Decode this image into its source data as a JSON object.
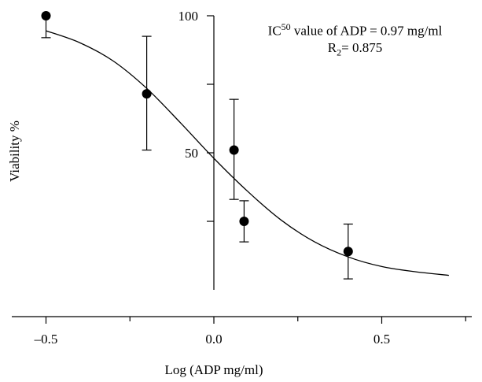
{
  "chart_data": {
    "type": "scatter",
    "xlabel": "Log (ADP mg/ml)",
    "ylabel": "Viability %",
    "xlim": [
      -0.6,
      0.78
    ],
    "ylim": [
      0,
      105
    ],
    "x_ticks": [
      -0.5,
      0.0,
      0.5
    ],
    "x_tick_labels": [
      "–0.5",
      "0.0",
      "0.5"
    ],
    "y_ticks": [
      50,
      100
    ],
    "y_tick_labels": [
      "50",
      "100"
    ],
    "grid": false,
    "legend": "none",
    "annotation": {
      "ic_prefix": "IC",
      "ic_sup": "50",
      "ic_rest": " value of ADP = 0.97 mg/ml",
      "r_prefix": "R",
      "r_sub": "2",
      "r_rest": "= 0.875"
    },
    "series": [
      {
        "type": "scatter",
        "points": [
          {
            "x": -0.5,
            "y": 100.0,
            "err_low": 92.0,
            "err_high": 100.0
          },
          {
            "x": -0.2,
            "y": 71.5,
            "err_low": 51.0,
            "err_high": 92.5
          },
          {
            "x": 0.06,
            "y": 51.0,
            "err_low": 33.0,
            "err_high": 69.5
          },
          {
            "x": 0.09,
            "y": 25.0,
            "err_low": 17.5,
            "err_high": 32.5
          },
          {
            "x": 0.4,
            "y": 14.0,
            "err_low": 4.0,
            "err_high": 24.0
          }
        ]
      },
      {
        "type": "line",
        "x": [
          -0.5,
          -0.4,
          -0.3,
          -0.2,
          -0.1,
          0.0,
          0.1,
          0.2,
          0.3,
          0.4,
          0.5,
          0.6,
          0.7
        ],
        "y": [
          94.5,
          90.2,
          83.5,
          73.5,
          61.0,
          48.0,
          36.0,
          25.5,
          17.5,
          12.0,
          8.5,
          6.6,
          5.3
        ]
      }
    ]
  }
}
